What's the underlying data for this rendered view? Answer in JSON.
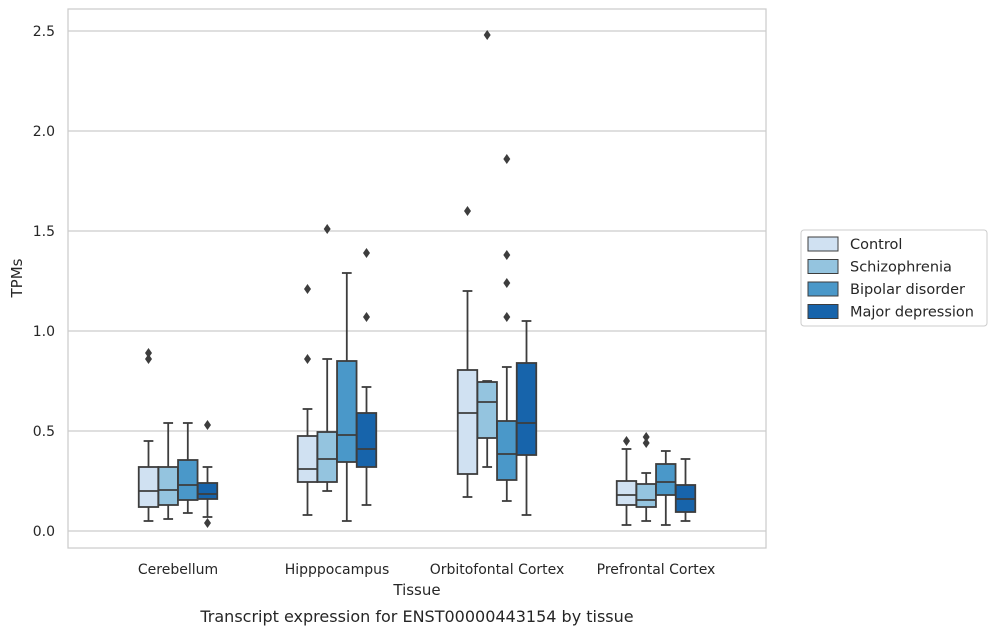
{
  "chart_data": {
    "type": "box",
    "title": "",
    "caption": "Transcript expression for ENST00000443154 by tissue",
    "xlabel": "Tissue",
    "ylabel": "TPMs",
    "ylim": [
      -0.09,
      2.61
    ],
    "yticks": [
      0.0,
      0.5,
      1.0,
      1.5,
      2.0,
      2.5
    ],
    "grid": "horizontal",
    "legend_position": "right",
    "categories": [
      "Cerebellum",
      "Hipppocampus",
      "Orbitofontal Cortex",
      "Prefrontal Cortex"
    ],
    "series": [
      {
        "name": "Control",
        "color": "#d0e1f2",
        "boxes": [
          {
            "whisker_low": 0.05,
            "q1": 0.12,
            "median": 0.2,
            "q3": 0.32,
            "whisker_high": 0.45,
            "outliers": [
              0.86,
              0.89
            ]
          },
          {
            "whisker_low": 0.08,
            "q1": 0.245,
            "median": 0.31,
            "q3": 0.475,
            "whisker_high": 0.61,
            "outliers": [
              0.86,
              1.21
            ]
          },
          {
            "whisker_low": 0.17,
            "q1": 0.285,
            "median": 0.59,
            "q3": 0.805,
            "whisker_high": 1.2,
            "outliers": [
              1.6
            ]
          },
          {
            "whisker_low": 0.03,
            "q1": 0.13,
            "median": 0.18,
            "q3": 0.25,
            "whisker_high": 0.41,
            "outliers": [
              0.45
            ]
          }
        ]
      },
      {
        "name": "Schizophrenia",
        "color": "#94c4df",
        "boxes": [
          {
            "whisker_low": 0.06,
            "q1": 0.13,
            "median": 0.205,
            "q3": 0.32,
            "whisker_high": 0.54,
            "outliers": []
          },
          {
            "whisker_low": 0.2,
            "q1": 0.245,
            "median": 0.36,
            "q3": 0.495,
            "whisker_high": 0.86,
            "outliers": [
              1.51
            ]
          },
          {
            "whisker_low": 0.32,
            "q1": 0.465,
            "median": 0.645,
            "q3": 0.745,
            "whisker_high": 0.75,
            "outliers": [
              2.48
            ]
          },
          {
            "whisker_low": 0.05,
            "q1": 0.12,
            "median": 0.155,
            "q3": 0.235,
            "whisker_high": 0.29,
            "outliers": [
              0.44,
              0.47
            ]
          }
        ]
      },
      {
        "name": "Bipolar disorder",
        "color": "#4a98c9",
        "boxes": [
          {
            "whisker_low": 0.09,
            "q1": 0.155,
            "median": 0.23,
            "q3": 0.355,
            "whisker_high": 0.54,
            "outliers": []
          },
          {
            "whisker_low": 0.05,
            "q1": 0.345,
            "median": 0.48,
            "q3": 0.85,
            "whisker_high": 1.29,
            "outliers": []
          },
          {
            "whisker_low": 0.15,
            "q1": 0.255,
            "median": 0.385,
            "q3": 0.55,
            "whisker_high": 0.82,
            "outliers": [
              1.07,
              1.24,
              1.38,
              1.86
            ]
          },
          {
            "whisker_low": 0.03,
            "q1": 0.18,
            "median": 0.245,
            "q3": 0.335,
            "whisker_high": 0.4,
            "outliers": []
          }
        ]
      },
      {
        "name": "Major depression",
        "color": "#1764ab",
        "boxes": [
          {
            "whisker_low": 0.07,
            "q1": 0.16,
            "median": 0.185,
            "q3": 0.24,
            "whisker_high": 0.32,
            "outliers": [
              0.04,
              0.53
            ]
          },
          {
            "whisker_low": 0.13,
            "q1": 0.32,
            "median": 0.41,
            "q3": 0.59,
            "whisker_high": 0.72,
            "outliers": [
              1.07,
              1.39
            ]
          },
          {
            "whisker_low": 0.08,
            "q1": 0.38,
            "median": 0.54,
            "q3": 0.84,
            "whisker_high": 1.05,
            "outliers": []
          },
          {
            "whisker_low": 0.05,
            "q1": 0.095,
            "median": 0.16,
            "q3": 0.23,
            "whisker_high": 0.36,
            "outliers": []
          }
        ]
      }
    ]
  }
}
